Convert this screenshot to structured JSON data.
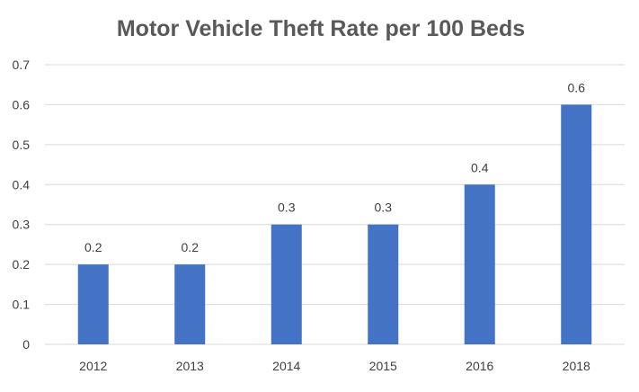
{
  "chart_data": {
    "type": "bar",
    "title": "Motor Vehicle Theft Rate per 100 Beds",
    "categories": [
      "2012",
      "2013",
      "2014",
      "2015",
      "2016",
      "2018"
    ],
    "values": [
      0.2,
      0.2,
      0.3,
      0.3,
      0.4,
      0.6
    ],
    "data_labels": [
      "0.2",
      "0.2",
      "0.3",
      "0.3",
      "0.4",
      "0.6"
    ],
    "y_ticks": [
      "0",
      "0.1",
      "0.2",
      "0.3",
      "0.4",
      "0.5",
      "0.6",
      "0.7"
    ],
    "ylim": [
      0,
      0.7
    ],
    "xlabel": "",
    "ylabel": "",
    "grid": true,
    "legend": "none",
    "bar_color": "#4472c4"
  }
}
